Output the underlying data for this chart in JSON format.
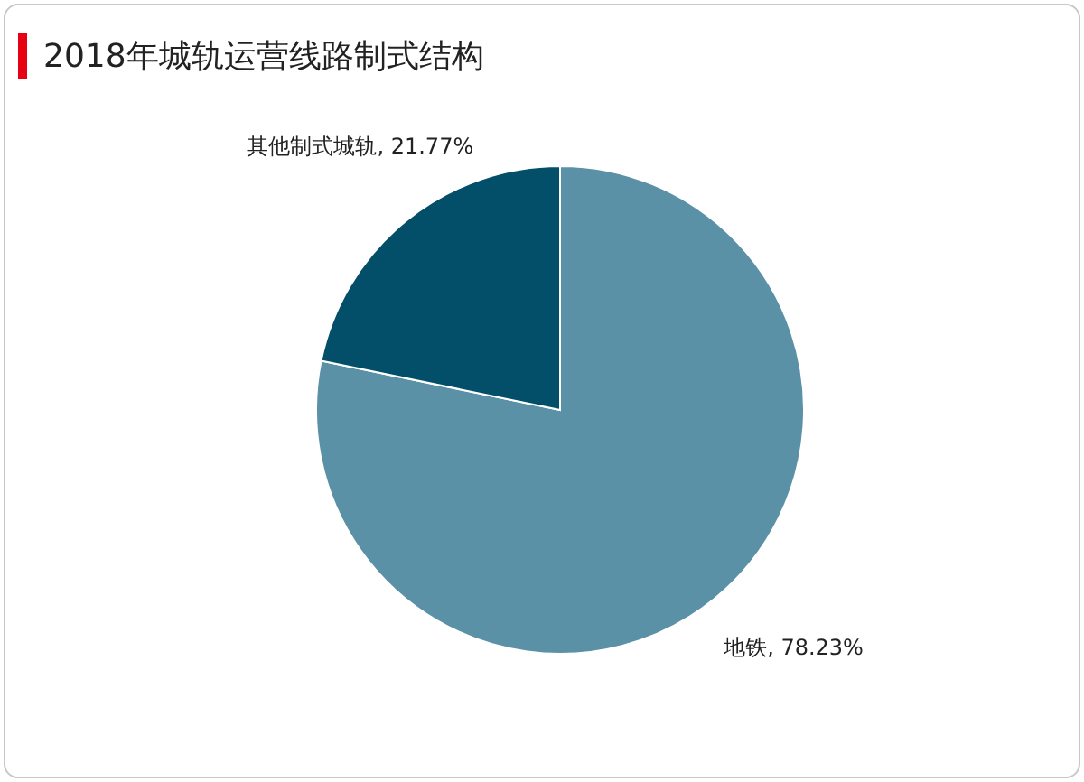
{
  "chart_data": {
    "type": "pie",
    "title": "2018年城轨运营线路制式结构",
    "categories": [
      "地铁",
      "其他制式城轨"
    ],
    "values": [
      78.23,
      21.77
    ],
    "colors": [
      "#5b91a7",
      "#034f69"
    ],
    "value_labels": [
      "78.23%",
      "21.77%"
    ],
    "legend": false
  }
}
